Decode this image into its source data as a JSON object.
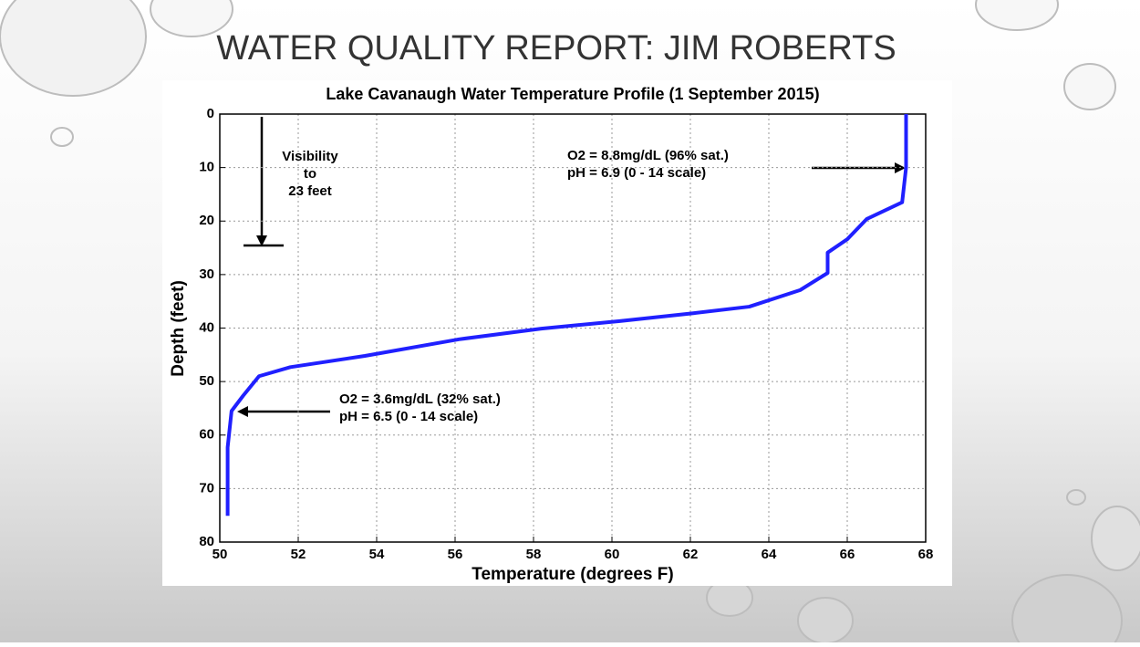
{
  "slide_title": "WATER QUALITY REPORT: JIM ROBERTS",
  "chart_data": {
    "type": "line",
    "title": "Lake Cavanaugh Water Temperature Profile (1 September 2015)",
    "x_label": "Temperature (degrees F)",
    "y_label": "Depth (feet)",
    "xlim": [
      50,
      68
    ],
    "xticks": [
      50,
      52,
      54,
      56,
      58,
      60,
      62,
      64,
      66,
      68
    ],
    "ylim": [
      0,
      80
    ],
    "yticks": [
      0,
      10,
      20,
      30,
      40,
      50,
      60,
      70,
      80
    ],
    "y_inverted": true,
    "grid": true,
    "x": [
      67.5,
      67.5,
      67.4,
      66.5,
      66.0,
      65.5,
      65.5,
      64.8,
      63.5,
      62.1,
      60.2,
      58.2,
      56.1,
      53.7,
      51.8,
      51.0,
      50.6,
      50.3,
      50.2,
      50.2
    ],
    "series": [
      {
        "color": "#2020ff",
        "values": [
          0,
          10,
          16.5,
          19.6,
          23.4,
          25.9,
          29.7,
          32.9,
          36.0,
          37.2,
          38.7,
          40.1,
          42.1,
          45.2,
          47.3,
          49.0,
          52.6,
          55.5,
          62.3,
          75.1
        ]
      }
    ],
    "annotations": [
      [
        "Visibility",
        "to",
        "23 feet"
      ],
      [
        "O2 = 8.8mg/dL (96% sat.)",
        "pH = 6.9 (0 - 14 scale)"
      ],
      [
        "O2 = 3.6mg/dL (32% sat.)",
        "pH = 6.5 (0 - 14 scale)"
      ]
    ]
  }
}
